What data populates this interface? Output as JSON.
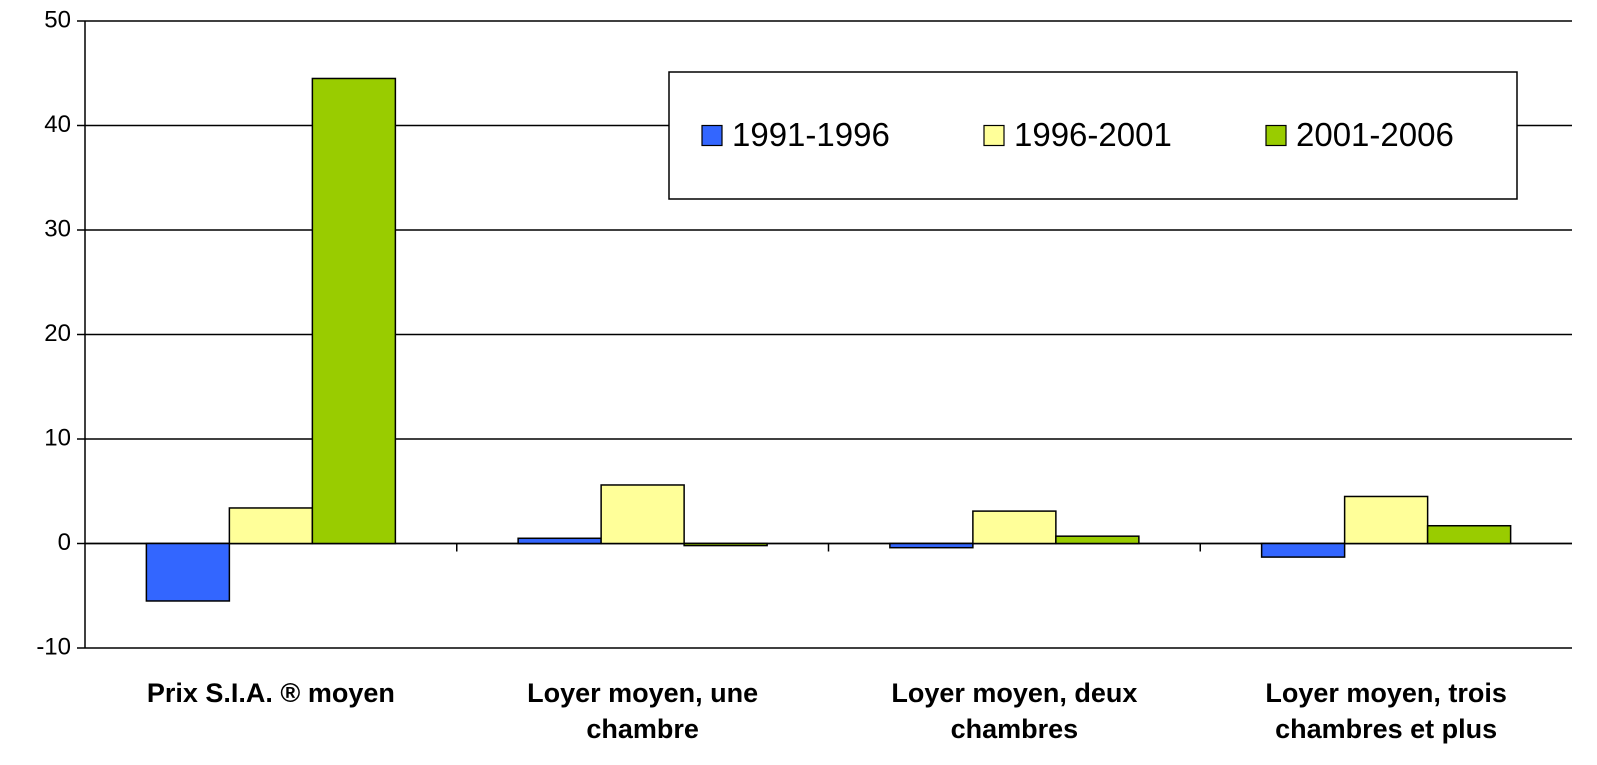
{
  "chart_data": {
    "type": "bar",
    "categories": [
      "Prix S.I.A. ® moyen",
      "Loyer moyen, une chambre",
      "Loyer moyen, deux chambres",
      "Loyer moyen, trois chambres et plus"
    ],
    "series": [
      {
        "name": "1991-1996",
        "color": "#3366ff",
        "values": [
          -5.5,
          0.5,
          -0.4,
          -1.3
        ]
      },
      {
        "name": "1996-2001",
        "color": "#ffff99",
        "values": [
          3.4,
          5.6,
          3.1,
          4.5
        ]
      },
      {
        "name": "2001-2006",
        "color": "#99cc00",
        "values": [
          44.5,
          -0.2,
          0.7,
          1.7
        ]
      }
    ],
    "ylim": [
      -10,
      50
    ],
    "yticks": [
      -10,
      0,
      10,
      20,
      30,
      40,
      50
    ],
    "grid": true,
    "legend": "top-right"
  }
}
